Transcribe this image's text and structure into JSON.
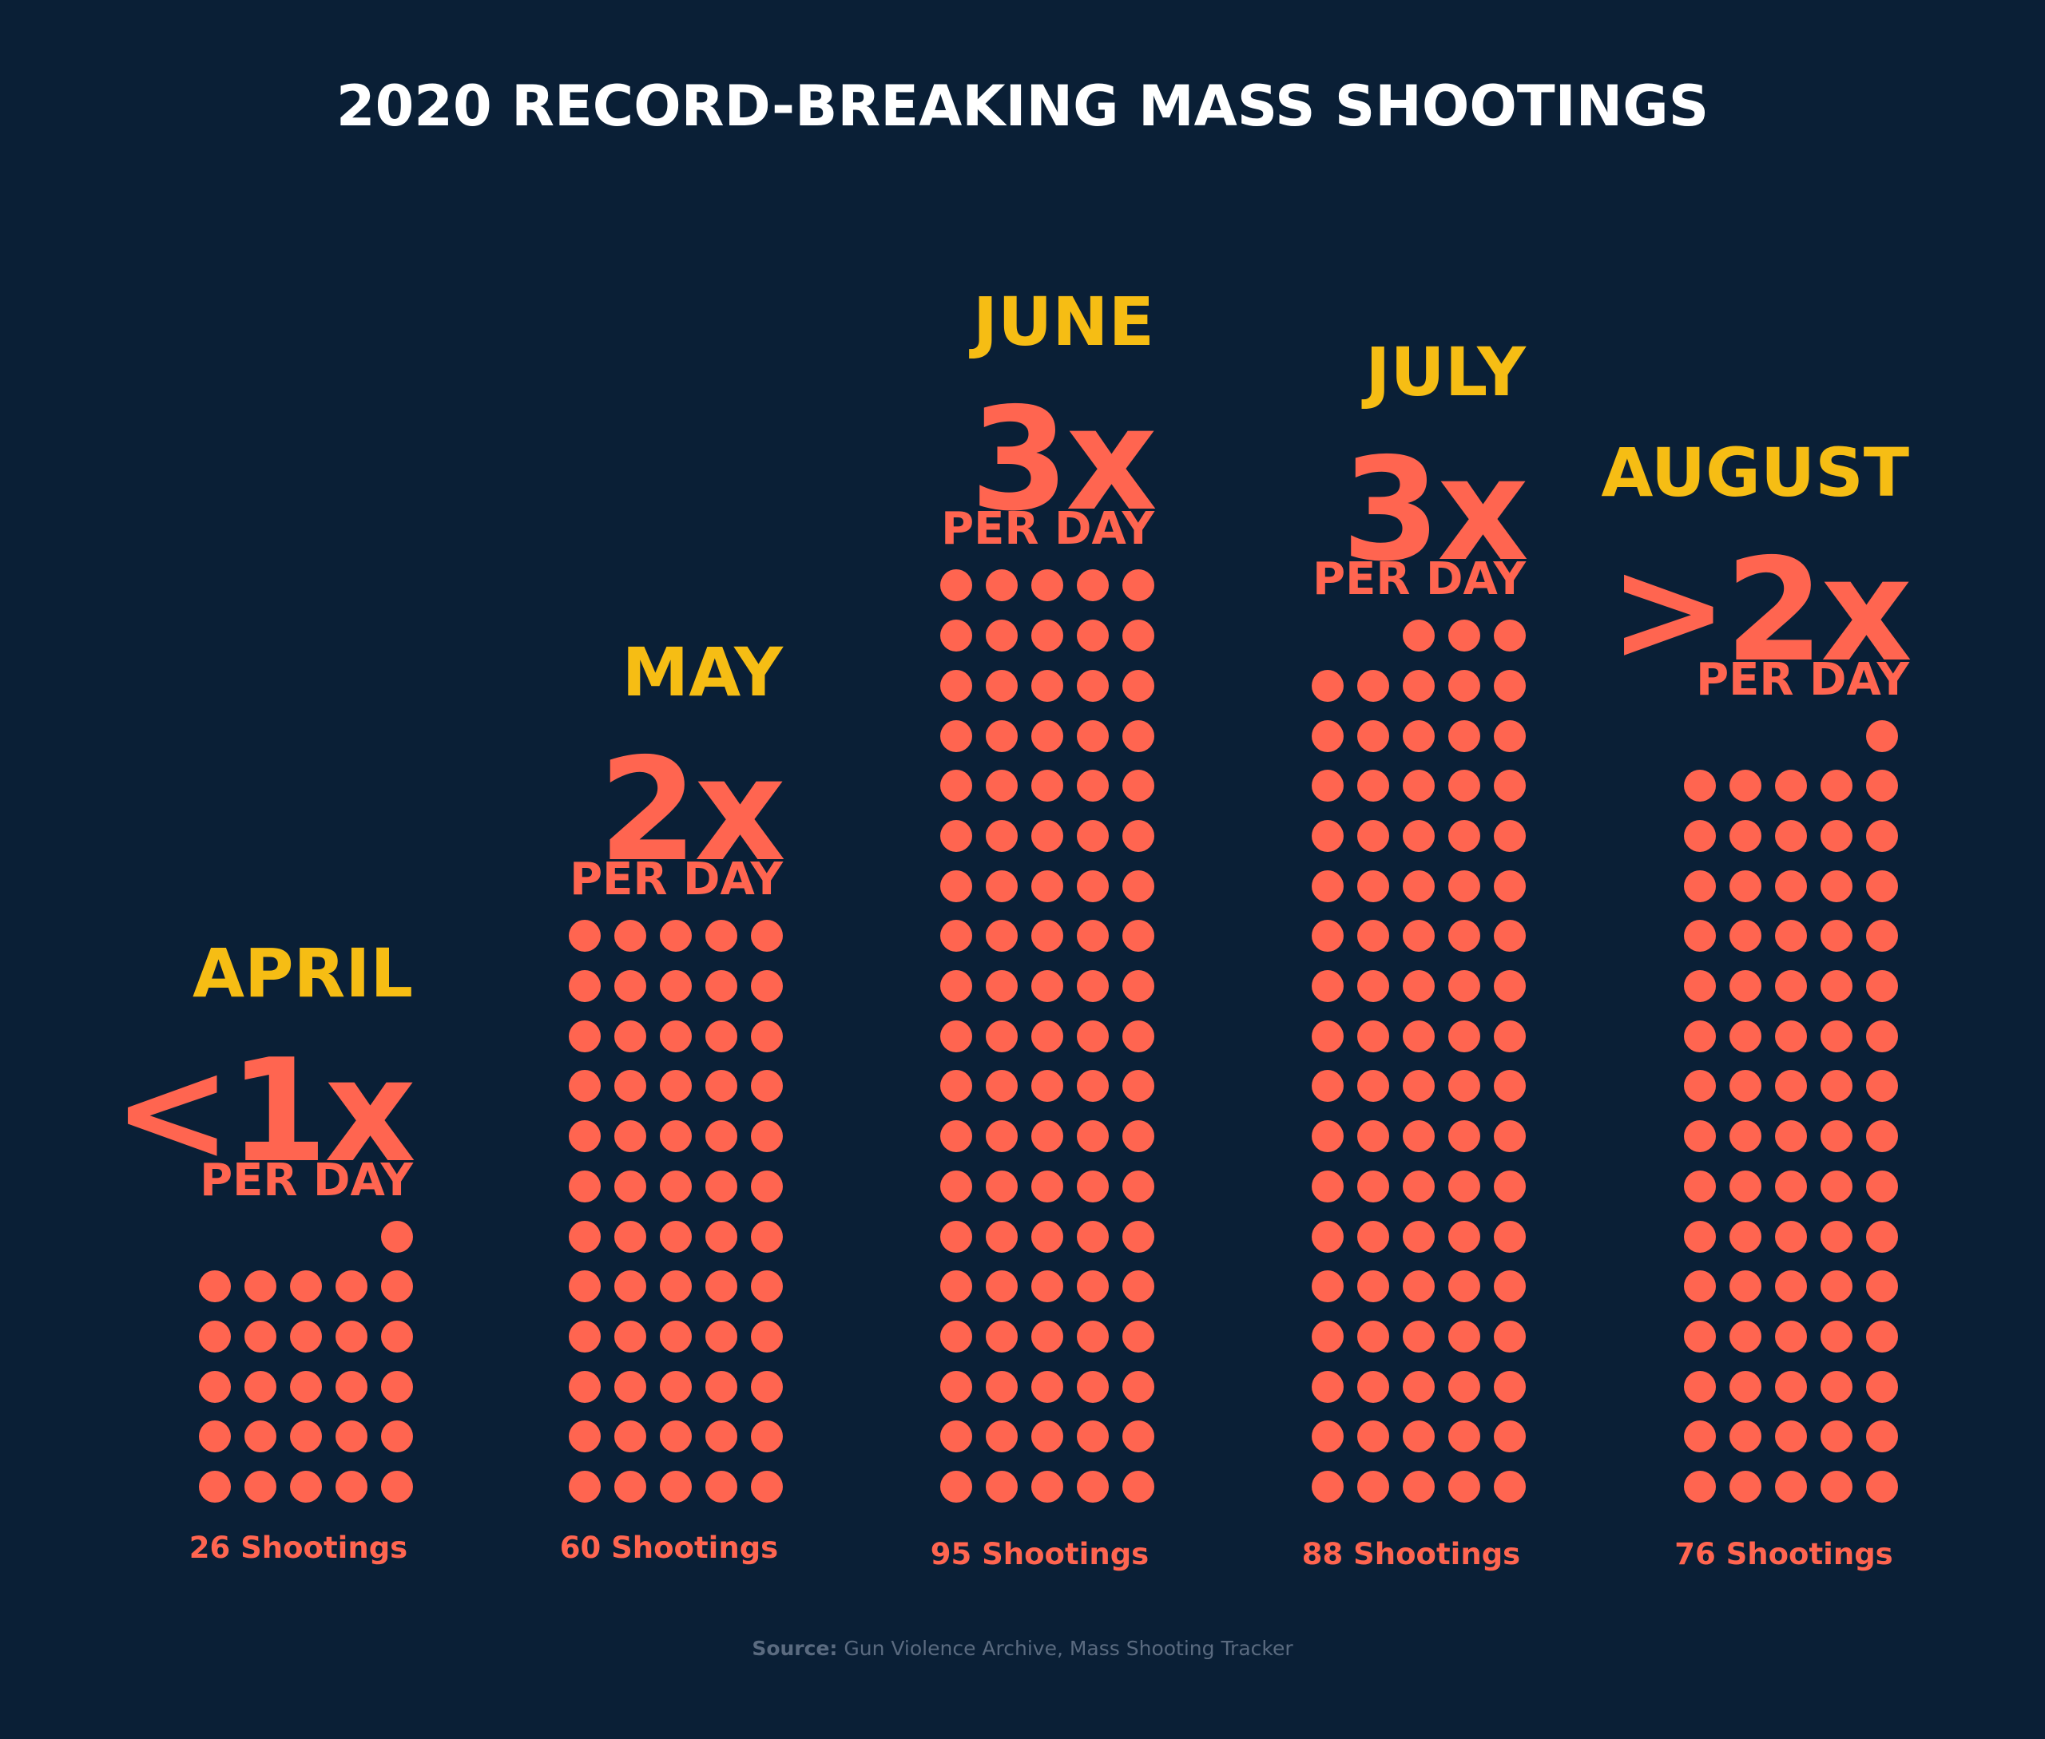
{
  "chart_data": {
    "type": "pictogram",
    "title": "2020 RECORD-BREAKING MASS SHOOTINGS",
    "series": [
      {
        "month": "APRIL",
        "rate": "<1x",
        "per_day_label": "PER DAY",
        "value": 26,
        "count_label": "26 Shootings"
      },
      {
        "month": "MAY",
        "rate": "2x",
        "per_day_label": "PER DAY",
        "value": 60,
        "count_label": "60 Shootings"
      },
      {
        "month": "JUNE",
        "rate": "3x",
        "per_day_label": "PER DAY",
        "value": 95,
        "count_label": "95 Shootings"
      },
      {
        "month": "JULY",
        "rate": "3x",
        "per_day_label": "PER DAY",
        "value": 88,
        "count_label": "88 Shootings"
      },
      {
        "month": "AUGUST",
        "rate": ">2x",
        "per_day_label": "PER DAY",
        "value": 76,
        "count_label": "76 Shootings"
      }
    ],
    "source_label": "Source:",
    "source_text": "Gun Violence Archive, Mass Shooting Tracker"
  },
  "colors": {
    "background": "#0a1f36",
    "month_text": "#f6bd14",
    "accent": "#ff6550",
    "title_text": "#ffffff",
    "source_text": "#5b6b80"
  }
}
